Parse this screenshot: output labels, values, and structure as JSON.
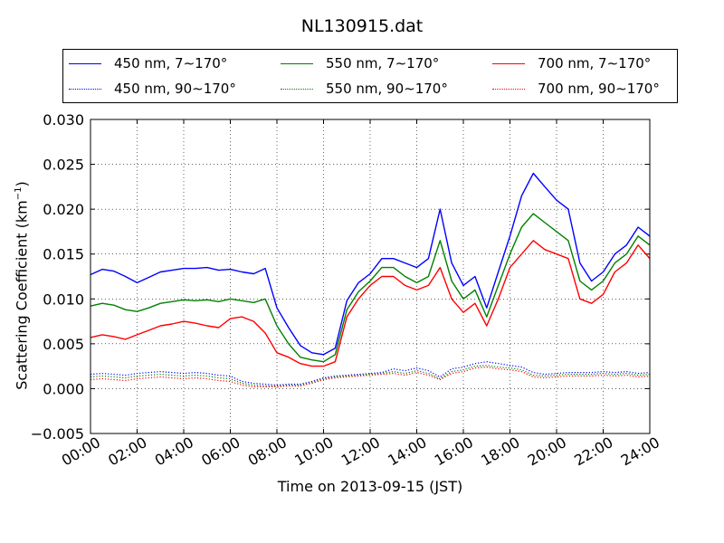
{
  "chart_data": {
    "type": "line",
    "title": "NL130915.dat",
    "xlabel": "Time on 2013-09-15 (JST)",
    "ylabel_prefix": "Scattering Coefficient (km",
    "ylabel_exp": "−1",
    "ylabel_suffix": ")",
    "xlim": [
      "2013-09-15 00:00",
      "2013-09-16 00:00"
    ],
    "ylim": [
      -0.005,
      0.03
    ],
    "grid": true,
    "legend_position": "top",
    "x_tick_labels": [
      "00:00",
      "02:00",
      "04:00",
      "06:00",
      "08:00",
      "10:00",
      "12:00",
      "14:00",
      "16:00",
      "18:00",
      "20:00",
      "22:00",
      "24:00"
    ],
    "y_ticks": [
      -0.005,
      0.0,
      0.005,
      0.01,
      0.015,
      0.02,
      0.025,
      0.03
    ],
    "y_tick_labels": [
      "−0.005",
      "0.000",
      "0.005",
      "0.010",
      "0.015",
      "0.020",
      "0.025",
      "0.030"
    ],
    "x": [
      "00:00",
      "00:30",
      "01:00",
      "01:30",
      "02:00",
      "02:30",
      "03:00",
      "03:30",
      "04:00",
      "04:30",
      "05:00",
      "05:30",
      "06:00",
      "06:30",
      "07:00",
      "07:30",
      "08:00",
      "08:30",
      "09:00",
      "09:30",
      "10:00",
      "10:30",
      "11:00",
      "11:30",
      "12:00",
      "12:30",
      "13:00",
      "13:30",
      "14:00",
      "14:30",
      "15:00",
      "15:30",
      "16:00",
      "16:30",
      "17:00",
      "17:30",
      "18:00",
      "18:30",
      "19:00",
      "19:30",
      "20:00",
      "20:30",
      "21:00",
      "21:30",
      "22:00",
      "22:30",
      "23:00",
      "23:30",
      "24:00"
    ],
    "series": [
      {
        "name": "450 nm, 7∼170°",
        "color": "#0000ff",
        "style": "solid",
        "values": [
          0.0127,
          0.0133,
          0.0131,
          0.0125,
          0.0118,
          0.0124,
          0.013,
          0.0132,
          0.0134,
          0.0134,
          0.0135,
          0.0132,
          0.0133,
          0.013,
          0.0128,
          0.0134,
          0.009,
          0.0068,
          0.0048,
          0.004,
          0.0038,
          0.0045,
          0.0098,
          0.0118,
          0.0128,
          0.0145,
          0.0145,
          0.014,
          0.0135,
          0.0145,
          0.02,
          0.014,
          0.0115,
          0.0125,
          0.009,
          0.013,
          0.017,
          0.0215,
          0.024,
          0.0225,
          0.021,
          0.02,
          0.014,
          0.012,
          0.013,
          0.015,
          0.016,
          0.018,
          0.017
        ]
      },
      {
        "name": "550 nm, 7∼170°",
        "color": "#008000",
        "style": "solid",
        "values": [
          0.0092,
          0.0095,
          0.0093,
          0.0088,
          0.0086,
          0.009,
          0.0095,
          0.0097,
          0.0099,
          0.0098,
          0.0099,
          0.0097,
          0.01,
          0.0098,
          0.0096,
          0.01,
          0.007,
          0.005,
          0.0035,
          0.0032,
          0.003,
          0.0038,
          0.0088,
          0.0108,
          0.012,
          0.0135,
          0.0135,
          0.0125,
          0.0118,
          0.0125,
          0.0165,
          0.012,
          0.01,
          0.011,
          0.008,
          0.0115,
          0.015,
          0.018,
          0.0195,
          0.0185,
          0.0175,
          0.0165,
          0.012,
          0.011,
          0.012,
          0.014,
          0.015,
          0.017,
          0.016
        ]
      },
      {
        "name": "700 nm, 7∼170°",
        "color": "#ff0000",
        "style": "solid",
        "values": [
          0.0057,
          0.006,
          0.0058,
          0.0055,
          0.006,
          0.0065,
          0.007,
          0.0072,
          0.0075,
          0.0073,
          0.007,
          0.0068,
          0.0078,
          0.008,
          0.0075,
          0.0062,
          0.004,
          0.0035,
          0.0028,
          0.0025,
          0.0025,
          0.003,
          0.008,
          0.01,
          0.0115,
          0.0125,
          0.0125,
          0.0115,
          0.011,
          0.0115,
          0.0135,
          0.01,
          0.0085,
          0.0095,
          0.007,
          0.01,
          0.0135,
          0.015,
          0.0165,
          0.0155,
          0.015,
          0.0145,
          0.01,
          0.0095,
          0.0105,
          0.013,
          0.014,
          0.016,
          0.0145
        ]
      },
      {
        "name": "450 nm, 90∼170°",
        "color": "#0000ff",
        "style": "dotted",
        "values": [
          0.0016,
          0.0017,
          0.0016,
          0.0015,
          0.0017,
          0.0018,
          0.0019,
          0.0018,
          0.0017,
          0.0018,
          0.0017,
          0.0015,
          0.0014,
          0.0008,
          0.0006,
          0.0005,
          0.0004,
          0.0005,
          0.0005,
          0.0008,
          0.0012,
          0.0014,
          0.0015,
          0.0016,
          0.0017,
          0.0018,
          0.0022,
          0.002,
          0.0023,
          0.002,
          0.0013,
          0.0022,
          0.0024,
          0.0028,
          0.003,
          0.0028,
          0.0026,
          0.0024,
          0.0018,
          0.0016,
          0.0017,
          0.0018,
          0.0018,
          0.0018,
          0.0019,
          0.0018,
          0.0019,
          0.0017,
          0.0018
        ]
      },
      {
        "name": "550 nm, 90∼170°",
        "color": "#008000",
        "style": "dotted",
        "values": [
          0.0013,
          0.0014,
          0.0013,
          0.0012,
          0.0014,
          0.0015,
          0.0016,
          0.0015,
          0.0014,
          0.0015,
          0.0014,
          0.0012,
          0.0011,
          0.0006,
          0.0004,
          0.0003,
          0.0003,
          0.0004,
          0.0004,
          0.0007,
          0.0011,
          0.0013,
          0.0014,
          0.0015,
          0.0016,
          0.0017,
          0.0019,
          0.0017,
          0.002,
          0.0017,
          0.0011,
          0.0019,
          0.0021,
          0.0025,
          0.0026,
          0.0024,
          0.0023,
          0.0021,
          0.0015,
          0.0014,
          0.0015,
          0.0016,
          0.0016,
          0.0016,
          0.0017,
          0.0016,
          0.0017,
          0.0015,
          0.0016
        ]
      },
      {
        "name": "700 nm, 90∼170°",
        "color": "#ff0000",
        "style": "dotted",
        "values": [
          0.001,
          0.0011,
          0.001,
          0.0009,
          0.0011,
          0.0012,
          0.0013,
          0.0012,
          0.0011,
          0.0012,
          0.0011,
          0.0009,
          0.0008,
          0.0004,
          0.0002,
          0.0002,
          0.0002,
          0.0003,
          0.0003,
          0.0006,
          0.001,
          0.0012,
          0.0013,
          0.0014,
          0.0015,
          0.0016,
          0.0017,
          0.0015,
          0.0018,
          0.0015,
          0.001,
          0.0017,
          0.0019,
          0.0023,
          0.0024,
          0.0022,
          0.0021,
          0.0019,
          0.0013,
          0.0012,
          0.0013,
          0.0014,
          0.0014,
          0.0014,
          0.0015,
          0.0014,
          0.0015,
          0.0013,
          0.0014
        ]
      }
    ]
  }
}
